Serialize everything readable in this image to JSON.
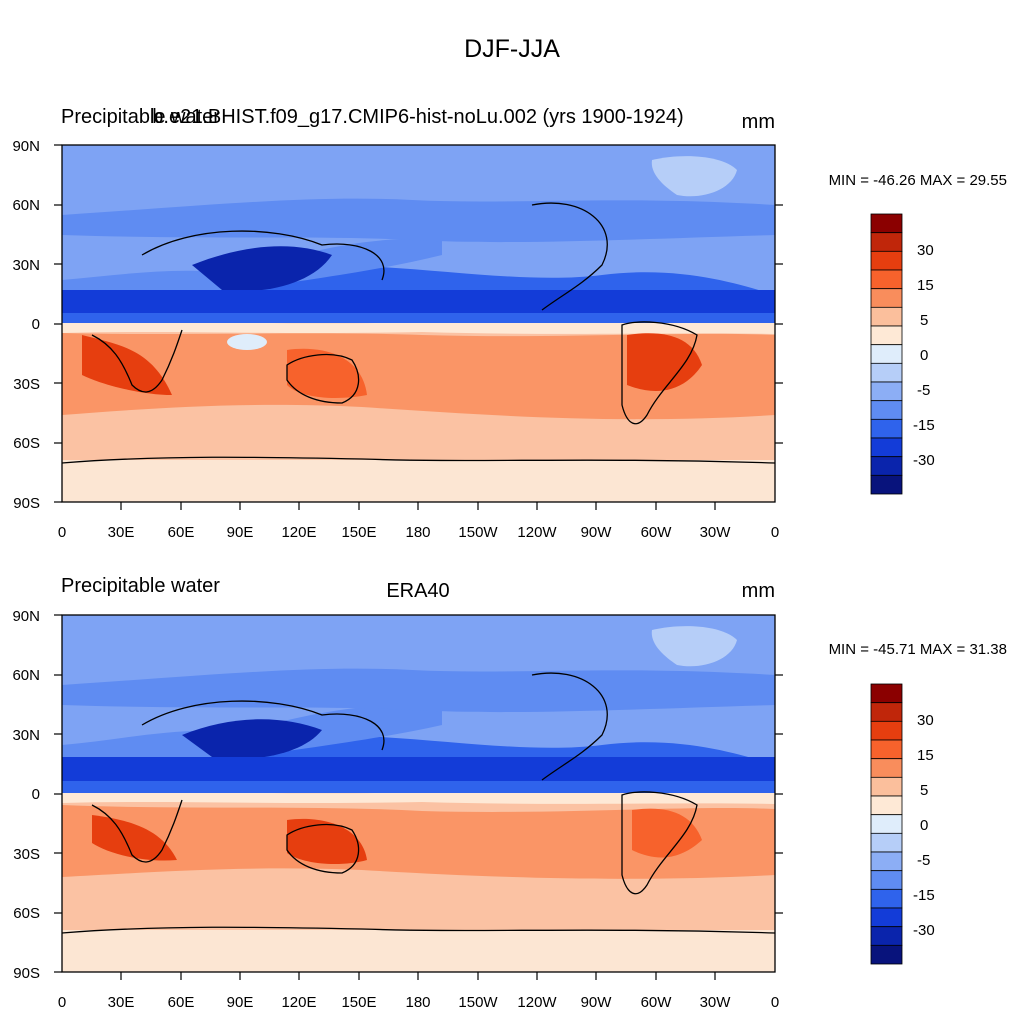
{
  "title": "DJF-JJA",
  "chart_data": [
    {
      "type": "heatmap",
      "left_title": "Precipitable water",
      "center_title": "b.e21.BHIST.f09_g17.CMIP6-hist-noLu.002 (yrs 1900-1924)",
      "units": "mm",
      "stats": "MIN = -46.26 MAX =  29.55",
      "min": -46.26,
      "max": 29.55,
      "x_ticks": [
        "0",
        "30E",
        "60E",
        "90E",
        "120E",
        "150E",
        "180",
        "150W",
        "120W",
        "90W",
        "60W",
        "30W",
        "0"
      ],
      "y_ticks": [
        "90N",
        "60N",
        "30N",
        "0",
        "30S",
        "60S",
        "90S"
      ]
    },
    {
      "type": "heatmap",
      "left_title": "Precipitable water",
      "center_title": "ERA40",
      "units": "mm",
      "stats": "MIN = -45.71 MAX =  31.38",
      "min": -45.71,
      "max": 31.38,
      "x_ticks": [
        "0",
        "30E",
        "60E",
        "90E",
        "120E",
        "150E",
        "180",
        "150W",
        "120W",
        "90W",
        "60W",
        "30W",
        "0"
      ],
      "y_ticks": [
        "90N",
        "60N",
        "30N",
        "0",
        "30S",
        "60S",
        "90S"
      ]
    }
  ],
  "colorbar": {
    "colors": [
      "#8b0000",
      "#c0260a",
      "#e63e0f",
      "#f7622c",
      "#f98d5c",
      "#fbbf9c",
      "#fee9d6",
      "#dfedfb",
      "#b6cef8",
      "#8caef5",
      "#5f8cf2",
      "#2f63ec",
      "#133cd8",
      "#0a24ac",
      "#08137c"
    ],
    "labels": [
      "30",
      "15",
      "5",
      "0",
      "-5",
      "-15",
      "-30"
    ]
  }
}
